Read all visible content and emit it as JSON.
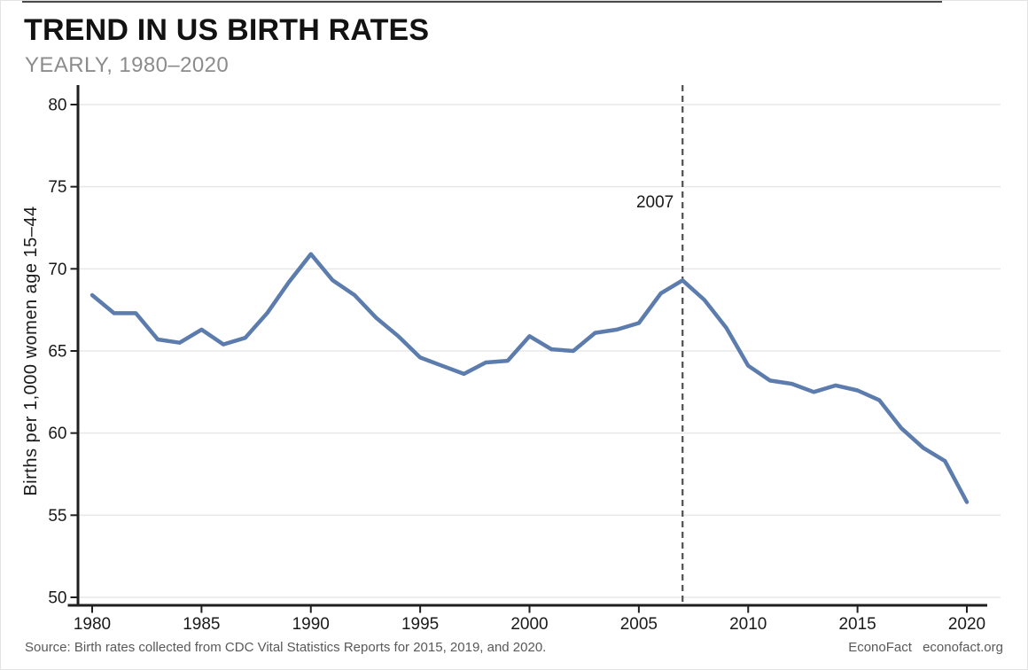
{
  "header": {
    "title": "TREND IN US BIRTH RATES",
    "subtitle": "YEARLY, 1980–2020"
  },
  "chart_data": {
    "type": "line",
    "title": "TREND IN US BIRTH RATES",
    "subtitle": "YEARLY, 1980–2020",
    "xlabel": "",
    "ylabel": "Births per 1,000 women age 15–44",
    "xlim": [
      1980,
      2020
    ],
    "ylim": [
      50,
      80
    ],
    "x_ticks": [
      1980,
      1985,
      1990,
      1995,
      2000,
      2005,
      2010,
      2015,
      2020
    ],
    "y_ticks": [
      50,
      55,
      60,
      65,
      70,
      75,
      80
    ],
    "grid": "horizontal",
    "legend_position": "none",
    "x": [
      1980,
      1981,
      1982,
      1983,
      1984,
      1985,
      1986,
      1987,
      1988,
      1989,
      1990,
      1991,
      1992,
      1993,
      1994,
      1995,
      1996,
      1997,
      1998,
      1999,
      2000,
      2001,
      2002,
      2003,
      2004,
      2005,
      2006,
      2007,
      2008,
      2009,
      2010,
      2011,
      2012,
      2013,
      2014,
      2015,
      2016,
      2017,
      2018,
      2019,
      2020
    ],
    "values": [
      68.4,
      67.3,
      67.3,
      65.7,
      65.5,
      66.3,
      65.4,
      65.8,
      67.3,
      69.2,
      70.9,
      69.3,
      68.4,
      67.0,
      65.9,
      64.6,
      64.1,
      63.6,
      64.3,
      64.4,
      65.9,
      65.1,
      65.0,
      66.1,
      66.3,
      66.7,
      68.5,
      69.3,
      68.1,
      66.4,
      64.1,
      63.2,
      63.0,
      62.5,
      62.9,
      62.6,
      62.0,
      60.3,
      59.1,
      58.3,
      55.8
    ],
    "annotation": {
      "label": "2007",
      "x": 2007,
      "style": "dashed-vertical-line"
    },
    "colors": {
      "line": "#5b7cad",
      "axis": "#1f1f1f",
      "grid": "#e8e8e8",
      "dashed_line": "#4f4f4f",
      "tick_text": "#1a1a1a",
      "title_text": "#121212",
      "subtitle_text": "#8c8c8c",
      "footer_text": "#595959"
    }
  },
  "footer": {
    "source": "Source: Birth rates collected from CDC Vital Statistics Reports for 2015, 2019, and 2020.",
    "brand": "EconoFact",
    "url": "econofact.org"
  }
}
